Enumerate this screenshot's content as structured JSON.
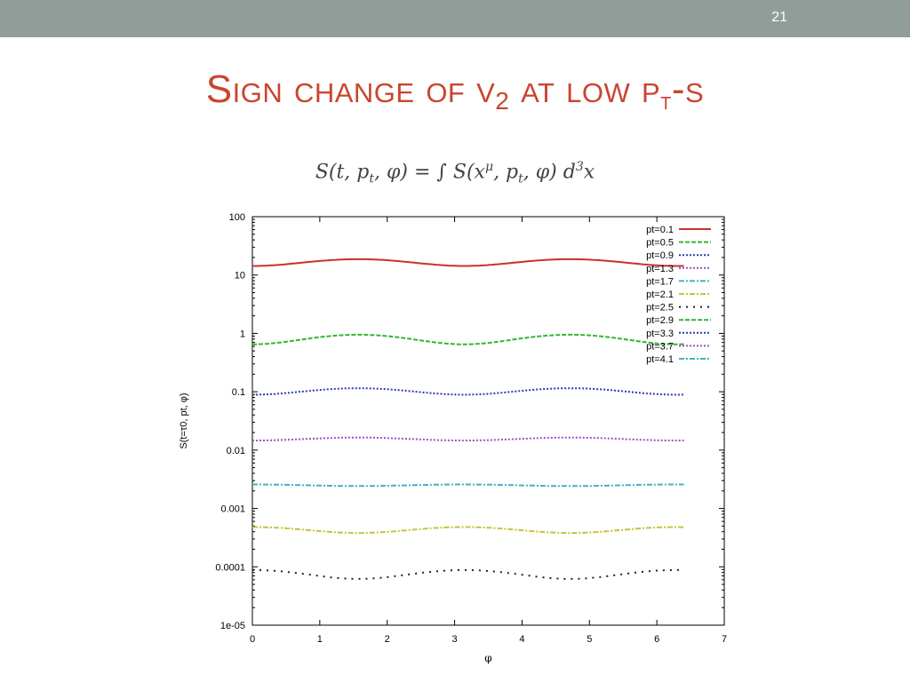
{
  "slide": {
    "page_number": "21",
    "title": {
      "main": "Sign change of v",
      "v_sub": "2",
      "middle": " at low p",
      "p_sub": "t",
      "end": "-s"
    },
    "formula": {
      "lhs": "S(t, p",
      "lhs_sub": "t",
      "lhs_end": ", φ) = ∫ S(x",
      "sup": "μ",
      "rhs": ", p",
      "rhs_sub": "t",
      "rhs_end": ", φ) d",
      "d_sup": "3",
      "x": "x"
    },
    "colors": {
      "topbar": "#909d99",
      "title": "#c9452f",
      "page_number": "#ffffff"
    }
  },
  "chart_data": {
    "type": "line",
    "title": "",
    "xlabel": "φ",
    "ylabel": "S(t=τ0, pt, φ)",
    "xlim": [
      0,
      7
    ],
    "ylim": [
      1e-05,
      100
    ],
    "yscale": "log",
    "grid": false,
    "legend_position": "top-right",
    "x_ticks": [
      "0",
      "1",
      "2",
      "3",
      "4",
      "5",
      "6",
      "7"
    ],
    "y_ticks": [
      "1e-05",
      "0.0001",
      "0.001",
      "0.01",
      "0.1",
      "1",
      "10",
      "100"
    ],
    "x_range": [
      0,
      6.4
    ],
    "series": [
      {
        "name": "pt=0.1",
        "color": "#c7322c",
        "dash": "solid",
        "mean": 16.5,
        "amp": 2.2,
        "sign": 1
      },
      {
        "name": "pt=0.5",
        "color": "#33b533",
        "dash": "dash",
        "mean": 0.8,
        "amp": 0.15,
        "sign": 1
      },
      {
        "name": "pt=0.9",
        "color": "#2c3ab5",
        "dash": "dot",
        "mean": 0.102,
        "amp": 0.013,
        "sign": 1
      },
      {
        "name": "pt=1.3",
        "color": "#a14cc6",
        "dash": "dot",
        "mean": 0.0155,
        "amp": 0.0009,
        "sign": 1
      },
      {
        "name": "pt=1.7",
        "color": "#3fb3c1",
        "dash": "dashdot",
        "mean": 0.0025,
        "amp": 8e-05,
        "sign": -1
      },
      {
        "name": "pt=2.1",
        "color": "#c5c43a",
        "dash": "dashdot",
        "mean": 0.00043,
        "amp": 5e-05,
        "sign": -1
      },
      {
        "name": "pt=2.5",
        "color": "#222222",
        "dash": "sparse",
        "mean": 7.5e-05,
        "amp": 1.3e-05,
        "sign": -1
      },
      {
        "name": "pt=2.9",
        "color": "#33b533",
        "dash": "dash",
        "mean": null,
        "amp": null,
        "sign": null
      },
      {
        "name": "pt=3.3",
        "color": "#2c3ab5",
        "dash": "dot",
        "mean": null,
        "amp": null,
        "sign": null
      },
      {
        "name": "pt=3.7",
        "color": "#a14cc6",
        "dash": "dot",
        "mean": null,
        "amp": null,
        "sign": null
      },
      {
        "name": "pt=4.1",
        "color": "#3fb3c1",
        "dash": "dashdot",
        "mean": null,
        "amp": null,
        "sign": null
      }
    ]
  }
}
